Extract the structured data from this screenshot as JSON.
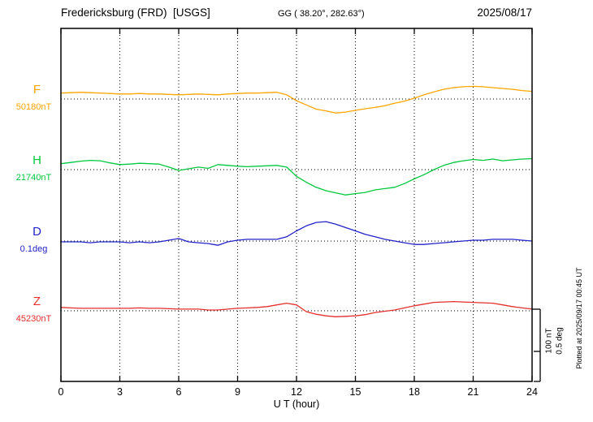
{
  "header": {
    "title": "Fredericksburg (FRD)  [USGS]",
    "coords": "GG ( 38.20°, 282.63°)",
    "date": "2025/08/17"
  },
  "scale_bar": {
    "label_nt": "100 nT",
    "label_deg": "0.5 deg"
  },
  "footer_note": "Plotted at 2025/09/17 00:45 UT",
  "chart_data": {
    "type": "line",
    "title": "Fredericksburg (FRD) [USGS] magnetogram 2025/08/17",
    "xlabel": "U T (hour)",
    "x_unit": "hour",
    "x_range": [
      0,
      24
    ],
    "x_ticks": [
      0,
      3,
      6,
      9,
      12,
      15,
      18,
      21,
      24
    ],
    "x_step_hours": 0.5,
    "grid": "dotted-vertical-at-3h",
    "legend_position": "left-margin",
    "scale": {
      "nT_per_bar": 100,
      "deg_per_bar": 0.5
    },
    "series": [
      {
        "name": "F",
        "unit": "nT",
        "baseline_label": "50180nT",
        "baseline_value": 50180,
        "color": "#FFA500",
        "values": [
          14,
          15,
          16,
          15,
          14,
          13,
          12,
          12,
          13,
          12,
          12,
          11,
          10,
          11,
          12,
          11,
          10,
          12,
          13,
          14,
          14,
          15,
          16,
          10,
          -4,
          -14,
          -24,
          -28,
          -33,
          -31,
          -27,
          -23,
          -20,
          -16,
          -10,
          -5,
          2,
          10,
          17,
          23,
          27,
          29,
          30,
          29,
          27,
          25,
          23,
          20,
          18
        ]
      },
      {
        "name": "H",
        "unit": "nT",
        "baseline_label": "21740nT",
        "baseline_value": 21740,
        "color": "#00C840",
        "values": [
          14,
          17,
          20,
          22,
          21,
          16,
          12,
          13,
          15,
          14,
          13,
          6,
          -2,
          2,
          6,
          3,
          12,
          10,
          8,
          7,
          8,
          9,
          10,
          6,
          -16,
          -30,
          -42,
          -50,
          -55,
          -60,
          -57,
          -54,
          -48,
          -45,
          -42,
          -33,
          -22,
          -12,
          0,
          10,
          17,
          21,
          24,
          22,
          25,
          21,
          23,
          25,
          26
        ]
      },
      {
        "name": "D",
        "unit": "deg",
        "baseline_label": "0.1deg",
        "color": "#2222CC",
        "values": [
          -0.01,
          -0.01,
          -0.01,
          -0.02,
          -0.01,
          -0.01,
          -0.01,
          -0.02,
          -0.01,
          -0.02,
          -0.01,
          0.01,
          0.03,
          -0.01,
          -0.02,
          -0.03,
          -0.05,
          -0.01,
          0.01,
          0.02,
          0.02,
          0.02,
          0.02,
          0.05,
          0.12,
          0.18,
          0.22,
          0.23,
          0.2,
          0.16,
          0.12,
          0.08,
          0.05,
          0.02,
          0.0,
          -0.02,
          -0.04,
          -0.04,
          -0.03,
          -0.02,
          -0.01,
          0.0,
          0.01,
          0.01,
          0.02,
          0.02,
          0.02,
          0.01,
          0.0
        ]
      },
      {
        "name": "Z",
        "unit": "nT",
        "baseline_label": "45230nT",
        "baseline_value": 45230,
        "color": "#E62E2E",
        "values": [
          8,
          7,
          6,
          6,
          6,
          6,
          6,
          6,
          7,
          6,
          6,
          5,
          4,
          4,
          4,
          2,
          2,
          4,
          6,
          7,
          8,
          10,
          14,
          18,
          14,
          -2,
          -8,
          -12,
          -14,
          -13,
          -12,
          -9,
          -4,
          -1,
          2,
          7,
          12,
          16,
          20,
          21,
          22,
          21,
          20,
          19,
          18,
          14,
          10,
          7,
          4
        ]
      }
    ]
  }
}
